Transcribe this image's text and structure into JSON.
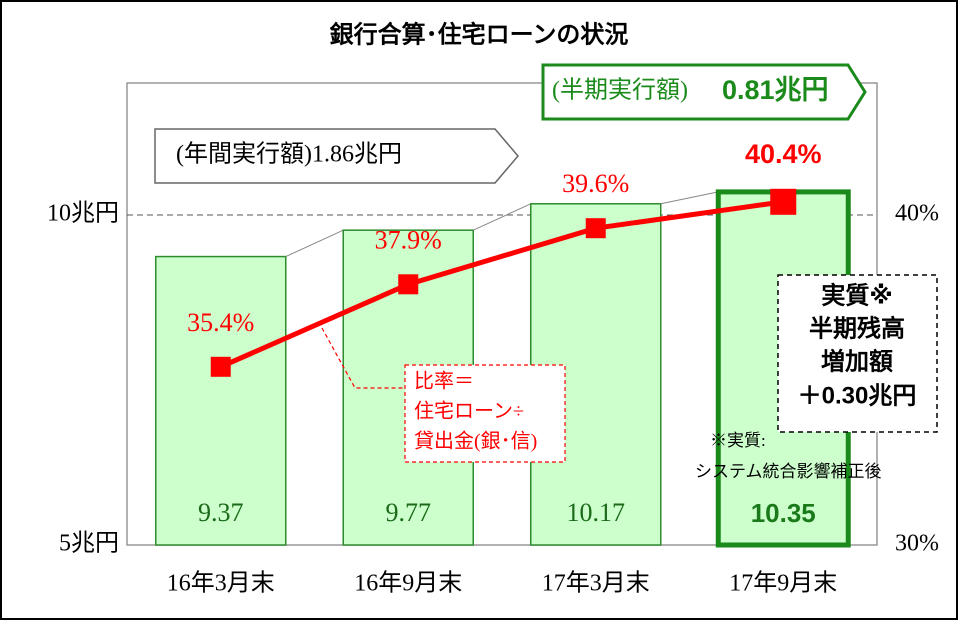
{
  "chart_data": {
    "type": "combo",
    "title": "銀行合算･住宅ローンの状況",
    "categories": [
      "16年3月末",
      "16年9月末",
      "17年3月末",
      "17年9月末"
    ],
    "series": [
      {
        "type": "bar",
        "color": "#ccffcc",
        "values": [
          9.37,
          9.77,
          10.17,
          10.35
        ]
      },
      {
        "type": "line",
        "axis": "y2",
        "color": "#ff0000",
        "values": [
          35.4,
          37.9,
          39.6,
          40.4
        ],
        "value_labels": [
          "35.4%",
          "37.9%",
          "39.6%",
          "40.4%"
        ]
      }
    ],
    "ylim": [
      5,
      12
    ],
    "yticks": [
      {
        "value": 5,
        "label": "5兆円"
      },
      {
        "value": 10,
        "label": "10兆円"
      }
    ],
    "y2lim": [
      30,
      44
    ],
    "y2ticks": [
      {
        "value": 30,
        "label": "30%"
      },
      {
        "value": 40,
        "label": "40%"
      }
    ],
    "grid": true,
    "annotations": {
      "half_year": [
        "(半期実行額)",
        "0.81兆円"
      ],
      "annual": "(年間実行額)1.86兆円",
      "increase": [
        "実質※",
        "半期残高",
        "増加額",
        "＋0.30兆円"
      ],
      "ratio": [
        "比率＝",
        "住宅ローン÷",
        "貸出金(銀･信)"
      ],
      "note": [
        "※実質:",
        "システム統合影響補正後"
      ]
    }
  }
}
